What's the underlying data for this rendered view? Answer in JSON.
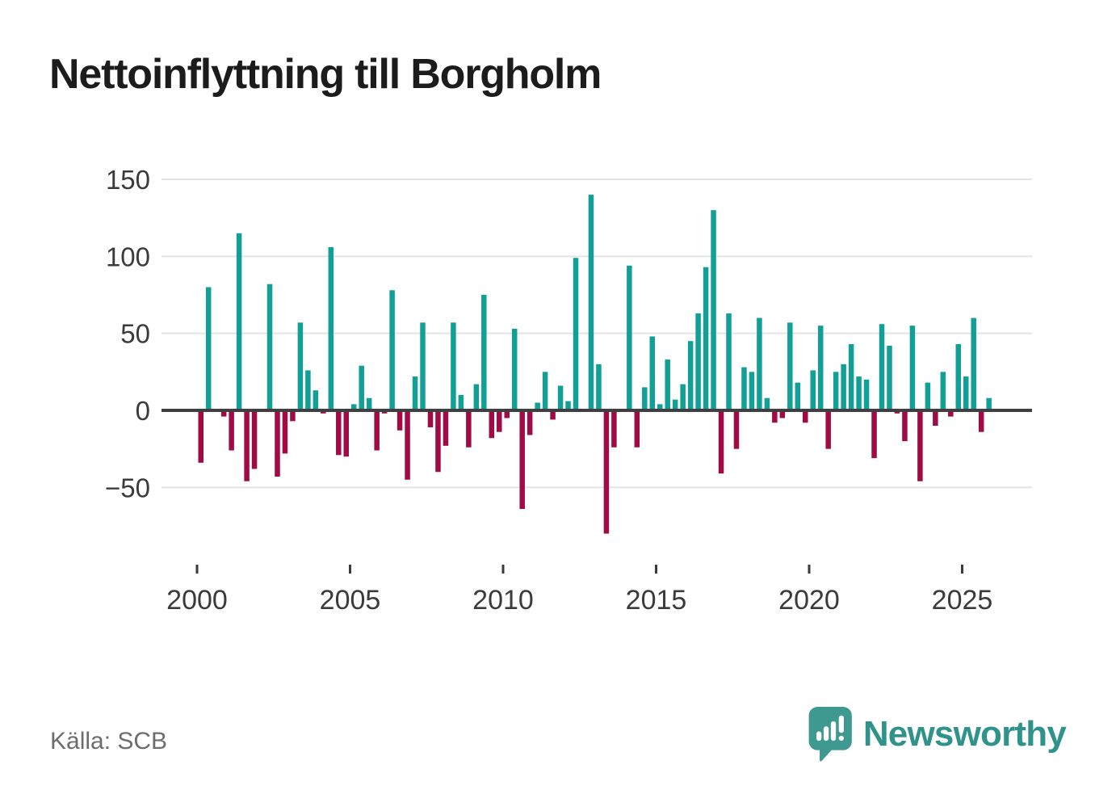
{
  "title": "Nettoinflyttning till Borgholm",
  "source_label": "Källa: SCB",
  "branding": {
    "wordmark": "Newsworthy",
    "icon": "speech-bubble-bar-chart-exclamation"
  },
  "colors": {
    "positive": "#12a096",
    "negative": "#a10b45",
    "axis": "#3f3f3f",
    "grid": "#e4e4e4",
    "axis_text": "#3b3b3b",
    "title": "#1c1c1c",
    "source": "#6d6d6d",
    "brand_icon": "#3e9a90",
    "brand_text": "#2f938b"
  },
  "chart_data": {
    "type": "bar",
    "title": "Nettoinflyttning till Borgholm",
    "frequency": "quarterly",
    "start": "2000-Q1",
    "end": "2025-Q4",
    "grid": true,
    "legend": false,
    "x_axis": {
      "tick_years": [
        2000,
        2005,
        2010,
        2015,
        2020,
        2025
      ]
    },
    "y_axis": {
      "ticks": [
        150,
        100,
        50,
        0,
        -50
      ],
      "range": [
        -88,
        158
      ]
    },
    "values_by_year": [
      {
        "year": 2000,
        "quarters": [
          -34,
          80,
          0,
          -4
        ]
      },
      {
        "year": 2001,
        "quarters": [
          -26,
          115,
          -46,
          -38
        ]
      },
      {
        "year": 2002,
        "quarters": [
          0,
          82,
          -43,
          -28
        ]
      },
      {
        "year": 2003,
        "quarters": [
          -7,
          57,
          26,
          13
        ]
      },
      {
        "year": 2004,
        "quarters": [
          -2,
          106,
          -29,
          -30
        ]
      },
      {
        "year": 2005,
        "quarters": [
          4,
          29,
          8,
          -26
        ]
      },
      {
        "year": 2006,
        "quarters": [
          -2,
          78,
          -13,
          -45
        ]
      },
      {
        "year": 2007,
        "quarters": [
          22,
          57,
          -11,
          -40
        ]
      },
      {
        "year": 2008,
        "quarters": [
          -23,
          57,
          10,
          -24
        ]
      },
      {
        "year": 2009,
        "quarters": [
          17,
          75,
          -18,
          -14
        ]
      },
      {
        "year": 2010,
        "quarters": [
          -5,
          53,
          -64,
          -16
        ]
      },
      {
        "year": 2011,
        "quarters": [
          5,
          25,
          -6,
          16
        ]
      },
      {
        "year": 2012,
        "quarters": [
          6,
          99,
          0,
          140
        ]
      },
      {
        "year": 2013,
        "quarters": [
          30,
          -80,
          -24,
          0
        ]
      },
      {
        "year": 2014,
        "quarters": [
          94,
          -24,
          15,
          48
        ]
      },
      {
        "year": 2015,
        "quarters": [
          4,
          33,
          7,
          17
        ]
      },
      {
        "year": 2016,
        "quarters": [
          45,
          63,
          93,
          130
        ]
      },
      {
        "year": 2017,
        "quarters": [
          -41,
          63,
          -25,
          28
        ]
      },
      {
        "year": 2018,
        "quarters": [
          25,
          60,
          8,
          -8
        ]
      },
      {
        "year": 2019,
        "quarters": [
          -5,
          57,
          18,
          -8
        ]
      },
      {
        "year": 2020,
        "quarters": [
          26,
          55,
          -25,
          25
        ]
      },
      {
        "year": 2021,
        "quarters": [
          30,
          43,
          22,
          20
        ]
      },
      {
        "year": 2022,
        "quarters": [
          -31,
          56,
          42,
          -2
        ]
      },
      {
        "year": 2023,
        "quarters": [
          -20,
          55,
          -46,
          18
        ]
      },
      {
        "year": 2024,
        "quarters": [
          -10,
          25,
          -4,
          43
        ]
      },
      {
        "year": 2025,
        "quarters": [
          22,
          60,
          -14,
          8
        ]
      }
    ]
  }
}
